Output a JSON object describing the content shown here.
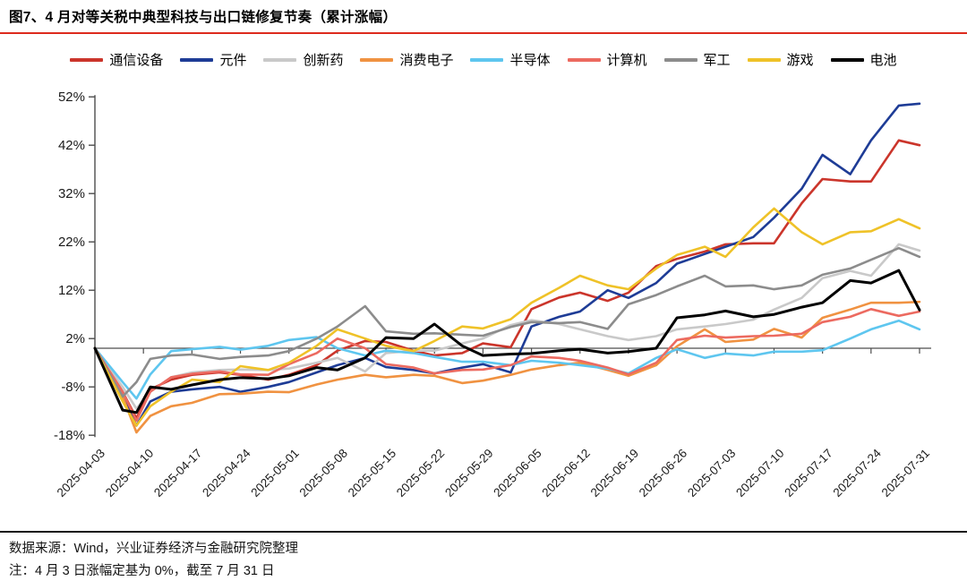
{
  "title": "图7、4 月对等关税中典型科技与出口链修复节奏（累计涨幅）",
  "accent_color": "#DD2A1D",
  "footer": {
    "source": "数据来源：Wind，兴业证券经济与金融研究院整理",
    "note": "注：4 月 3 日涨幅定基为 0%，截至 7 月 31 日"
  },
  "chart_data": {
    "type": "line",
    "title": "4 月对等关税中典型科技与出口链修复节奏（累计涨幅）",
    "unit": "%",
    "baseline": 0,
    "baseline_note": "2025-04-03 = 0%",
    "grid": false,
    "legend_position": "top",
    "x_label_rotation": -45,
    "ylim": [
      -18,
      52
    ],
    "y_tick_values": [
      52,
      42,
      32,
      22,
      12,
      2,
      -8,
      -18
    ],
    "y_tick_labels": [
      "52%",
      "42%",
      "32%",
      "22%",
      "12%",
      "2%",
      "-8%",
      "-18%"
    ],
    "x_range_days": [
      0,
      119
    ],
    "x_tick_days": [
      0,
      7,
      14,
      21,
      28,
      35,
      42,
      49,
      56,
      63,
      70,
      77,
      84,
      91,
      98,
      105,
      112,
      119
    ],
    "x_tick_labels": [
      "2025-04-03",
      "2025-04-10",
      "2025-04-17",
      "2025-04-24",
      "2025-05-01",
      "2025-05-08",
      "2025-05-15",
      "2025-05-22",
      "2025-05-29",
      "2025-06-05",
      "2025-06-12",
      "2025-06-19",
      "2025-06-26",
      "2025-07-03",
      "2025-07-10",
      "2025-07-17",
      "2025-07-24",
      "2025-07-31"
    ],
    "x_days": [
      0,
      4,
      6,
      8,
      11,
      14,
      18,
      21,
      25,
      28,
      32,
      35,
      39,
      42,
      46,
      49,
      53,
      56,
      60,
      63,
      67,
      70,
      74,
      77,
      81,
      84,
      88,
      91,
      95,
      98,
      102,
      105,
      109,
      112,
      116,
      119
    ],
    "x_dates": [
      "2025-04-03",
      "2025-04-07",
      "2025-04-09",
      "2025-04-11",
      "2025-04-14",
      "2025-04-17",
      "2025-04-21",
      "2025-04-24",
      "2025-04-28",
      "2025-05-01",
      "2025-05-05",
      "2025-05-08",
      "2025-05-12",
      "2025-05-15",
      "2025-05-19",
      "2025-05-22",
      "2025-05-26",
      "2025-05-29",
      "2025-06-02",
      "2025-06-05",
      "2025-06-09",
      "2025-06-12",
      "2025-06-16",
      "2025-06-19",
      "2025-06-23",
      "2025-06-26",
      "2025-06-30",
      "2025-07-03",
      "2025-07-07",
      "2025-07-10",
      "2025-07-14",
      "2025-07-17",
      "2025-07-21",
      "2025-07-24",
      "2025-07-28",
      "2025-07-31"
    ],
    "series": [
      {
        "name": "通信设备",
        "color": "#CB352B",
        "values": [
          0,
          -9,
          -14.5,
          -8.5,
          -6.5,
          -5.5,
          -5,
          -5.5,
          -6.5,
          -5.5,
          -3.5,
          -0.5,
          1.5,
          1.3,
          -0.5,
          -1.5,
          -1,
          1,
          0.2,
          8.1,
          10.5,
          11.5,
          9.8,
          11.5,
          17,
          18.5,
          20,
          21.5,
          21.7,
          21.7,
          30,
          35,
          34.5,
          34.5,
          43,
          42
        ]
      },
      {
        "name": "元件",
        "color": "#1E3C96",
        "values": [
          0,
          -10,
          -16,
          -11,
          -9,
          -8.5,
          -8,
          -9,
          -8,
          -7,
          -5,
          -3.5,
          -2,
          -3.9,
          -4.5,
          -5.2,
          -4,
          -3.3,
          -5,
          4.5,
          6.5,
          7.6,
          12,
          10.4,
          13.5,
          17.5,
          19.5,
          21,
          23,
          27,
          33,
          40,
          36,
          43,
          50.2,
          50.6
        ]
      },
      {
        "name": "创新药",
        "color": "#C9C9C9",
        "values": [
          0,
          -8,
          -12.5,
          -9,
          -6,
          -5,
          -4.5,
          -4.4,
          -4.5,
          -4.2,
          -3,
          -2,
          -4.8,
          -1,
          -0.5,
          -0.5,
          1,
          2,
          4.8,
          5.8,
          5,
          3.9,
          2.5,
          1.7,
          2.5,
          3.9,
          4.5,
          5,
          5.9,
          8,
          10.4,
          14.5,
          16,
          15,
          21.5,
          20.2
        ]
      },
      {
        "name": "消费电子",
        "color": "#F09241",
        "values": [
          0,
          -10,
          -17.4,
          -14,
          -12,
          -11.3,
          -9.5,
          -9.4,
          -9,
          -9.1,
          -7.5,
          -6.5,
          -5.5,
          -6,
          -5.5,
          -5.7,
          -7.2,
          -6.7,
          -5.5,
          -4.4,
          -3.5,
          -3,
          -4.5,
          -5.7,
          -3.5,
          0.4,
          3.9,
          1.3,
          1.8,
          4,
          2.2,
          6.3,
          8,
          9.4,
          9.4,
          9.6
        ]
      },
      {
        "name": "半导体",
        "color": "#5EC6EF",
        "values": [
          0,
          -7,
          -10.4,
          -5.4,
          -0.6,
          -0.2,
          0.3,
          -0.3,
          0.5,
          1.7,
          2.3,
          0,
          -1.5,
          -0.5,
          -1,
          -1.8,
          -2.8,
          -2.8,
          -3.5,
          -2.6,
          -3,
          -3.5,
          -4.2,
          -5.2,
          -2,
          -0.2,
          -2,
          -1.1,
          -1.5,
          -0.7,
          -0.7,
          -0.4,
          2,
          3.9,
          5.7,
          3.9
        ]
      },
      {
        "name": "计算机",
        "color": "#EC6A60",
        "values": [
          0,
          -9,
          -15,
          -9,
          -6,
          -5.3,
          -4.8,
          -5.4,
          -5.5,
          -3.3,
          -1,
          2,
          0,
          -3.3,
          -4,
          -5.2,
          -4.5,
          -4.4,
          -3.5,
          -1.7,
          -2,
          -2.6,
          -4,
          -5.4,
          -3,
          1.7,
          2.6,
          2.2,
          2.5,
          2.6,
          3,
          5.4,
          6.5,
          8.1,
          6.7,
          7.6
        ]
      },
      {
        "name": "军工",
        "color": "#8C8C8C",
        "values": [
          0,
          -10,
          -7,
          -2.2,
          -1.5,
          -1.3,
          -2.2,
          -1.8,
          -1.5,
          -0.6,
          2,
          4.5,
          8.7,
          3.5,
          3,
          3.1,
          2.8,
          2.6,
          4.4,
          5.4,
          5.2,
          5.4,
          4,
          9.1,
          11,
          12.8,
          15,
          12.8,
          13,
          12.2,
          13,
          15.2,
          16.5,
          18.3,
          20.7,
          18.9
        ]
      },
      {
        "name": "游戏",
        "color": "#EFC228",
        "values": [
          0,
          -11,
          -16,
          -12,
          -9,
          -6.5,
          -7,
          -3.7,
          -4.5,
          -3,
          0.5,
          3.9,
          2,
          0.5,
          -0.6,
          1.5,
          4.5,
          4.1,
          6,
          9.4,
          12.5,
          15,
          13,
          12.2,
          16.5,
          19.3,
          21,
          18.9,
          25,
          28.9,
          24,
          21.5,
          24,
          24.2,
          26.7,
          24.8
        ]
      },
      {
        "name": "电池",
        "color": "#000000",
        "values": [
          0,
          -12.8,
          -13.3,
          -8,
          -8.5,
          -7.6,
          -6.5,
          -6.1,
          -6.3,
          -5.7,
          -4,
          -4.5,
          -2,
          2.2,
          2,
          5,
          0.5,
          -1.5,
          -1.2,
          -1.1,
          -0.5,
          -0.2,
          -1,
          -0.7,
          0,
          6.3,
          6.9,
          7.7,
          6.5,
          7,
          8.5,
          9.4,
          14,
          13.5,
          16.1,
          7.9
        ]
      }
    ]
  }
}
